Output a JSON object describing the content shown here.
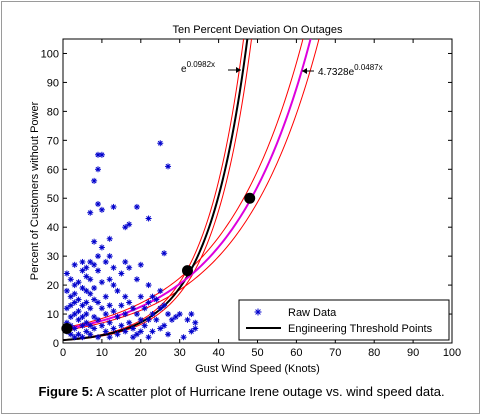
{
  "chart_data": {
    "type": "scatter",
    "title": "Ten Percent Deviation On Outages",
    "xlabel": "Gust Wind Speed (Knots)",
    "ylabel": "Percent of Customers without Power",
    "xlim": [
      0,
      100
    ],
    "ylim": [
      0,
      105
    ],
    "xticks": [
      0,
      10,
      20,
      30,
      40,
      50,
      60,
      70,
      80,
      90,
      100
    ],
    "yticks": [
      0,
      10,
      20,
      30,
      40,
      50,
      60,
      70,
      80,
      90,
      100
    ],
    "legend_position": "bottom-right",
    "colors": {
      "raw": "#0000cc",
      "threshold_curve": "#000000",
      "fit_curve": "#dd00dd",
      "deviation_band": "#ff0000",
      "marker": "#000000"
    },
    "series": [
      {
        "name": "Raw Data",
        "marker": "asterisk",
        "points": [
          [
            1,
            24
          ],
          [
            1,
            18
          ],
          [
            1,
            12
          ],
          [
            1,
            7
          ],
          [
            1,
            4
          ],
          [
            2,
            22
          ],
          [
            2,
            16
          ],
          [
            2,
            13
          ],
          [
            2,
            9
          ],
          [
            2,
            6
          ],
          [
            2,
            3
          ],
          [
            3,
            27
          ],
          [
            3,
            20
          ],
          [
            3,
            17
          ],
          [
            3,
            14
          ],
          [
            3,
            10
          ],
          [
            3,
            5
          ],
          [
            3,
            2
          ],
          [
            4,
            21
          ],
          [
            4,
            15
          ],
          [
            4,
            11
          ],
          [
            4,
            8
          ],
          [
            4,
            3
          ],
          [
            5,
            28
          ],
          [
            5,
            25
          ],
          [
            5,
            19
          ],
          [
            5,
            13
          ],
          [
            5,
            9
          ],
          [
            5,
            6
          ],
          [
            5,
            2
          ],
          [
            6,
            26
          ],
          [
            6,
            23
          ],
          [
            6,
            18
          ],
          [
            6,
            14
          ],
          [
            6,
            10
          ],
          [
            6,
            7
          ],
          [
            6,
            4
          ],
          [
            7,
            45
          ],
          [
            7,
            28
          ],
          [
            7,
            22
          ],
          [
            7,
            17
          ],
          [
            7,
            12
          ],
          [
            7,
            6
          ],
          [
            7,
            3
          ],
          [
            8,
            56
          ],
          [
            8,
            35
          ],
          [
            8,
            27
          ],
          [
            8,
            19
          ],
          [
            8,
            15
          ],
          [
            8,
            9
          ],
          [
            8,
            5
          ],
          [
            9,
            65
          ],
          [
            9,
            60
          ],
          [
            9,
            48
          ],
          [
            9,
            30
          ],
          [
            9,
            25
          ],
          [
            9,
            14
          ],
          [
            9,
            8
          ],
          [
            9,
            2
          ],
          [
            10,
            65
          ],
          [
            10,
            46
          ],
          [
            10,
            33
          ],
          [
            10,
            21
          ],
          [
            10,
            12
          ],
          [
            10,
            6
          ],
          [
            11,
            28
          ],
          [
            11,
            16
          ],
          [
            11,
            10
          ],
          [
            11,
            4
          ],
          [
            12,
            36
          ],
          [
            12,
            30
          ],
          [
            12,
            22
          ],
          [
            12,
            13
          ],
          [
            12,
            7
          ],
          [
            12,
            2
          ],
          [
            13,
            47
          ],
          [
            13,
            26
          ],
          [
            13,
            20
          ],
          [
            13,
            11
          ],
          [
            13,
            5
          ],
          [
            14,
            18
          ],
          [
            14,
            9
          ],
          [
            14,
            3
          ],
          [
            15,
            24
          ],
          [
            15,
            13
          ],
          [
            15,
            6
          ],
          [
            16,
            40
          ],
          [
            16,
            28
          ],
          [
            16,
            16
          ],
          [
            16,
            10
          ],
          [
            16,
            4
          ],
          [
            17,
            41
          ],
          [
            17,
            26
          ],
          [
            17,
            14
          ],
          [
            17,
            7
          ],
          [
            18,
            12
          ],
          [
            18,
            5
          ],
          [
            18,
            2
          ],
          [
            19,
            47
          ],
          [
            19,
            22
          ],
          [
            19,
            10
          ],
          [
            19,
            3
          ],
          [
            20,
            27
          ],
          [
            20,
            16
          ],
          [
            20,
            8
          ],
          [
            20,
            4
          ],
          [
            21,
            12
          ],
          [
            21,
            6
          ],
          [
            22,
            43
          ],
          [
            22,
            20
          ],
          [
            22,
            14
          ],
          [
            22,
            8
          ],
          [
            22,
            2
          ],
          [
            23,
            16
          ],
          [
            23,
            10
          ],
          [
            23,
            4
          ],
          [
            24,
            15
          ],
          [
            24,
            8
          ],
          [
            25,
            69
          ],
          [
            25,
            18
          ],
          [
            25,
            12
          ],
          [
            25,
            5
          ],
          [
            26,
            31
          ],
          [
            26,
            13
          ],
          [
            26,
            6
          ],
          [
            27,
            61
          ],
          [
            27,
            10
          ],
          [
            27,
            3
          ],
          [
            28,
            8
          ],
          [
            29,
            9
          ],
          [
            30,
            10
          ],
          [
            31,
            2
          ],
          [
            32,
            8
          ],
          [
            33,
            4
          ],
          [
            33,
            10
          ],
          [
            34,
            7
          ],
          [
            34,
            5
          ]
        ]
      },
      {
        "name": "Engineering Threshold Points",
        "points": [
          [
            1,
            5
          ],
          [
            32,
            25
          ],
          [
            48,
            50
          ]
        ]
      }
    ],
    "curves": [
      {
        "label": "e",
        "exponent_label": "0.0982x",
        "formula": "exp(0.0982*x)",
        "color": "#000000"
      },
      {
        "label": "4.7328e",
        "exponent_label": "0.0487x",
        "formula": "4.7328*exp(0.0487*x)",
        "color": "#dd00dd"
      },
      {
        "formula": "1.1*exp(0.0982*x)",
        "color": "#ff0000"
      },
      {
        "formula": "0.9*exp(0.0982*x)",
        "color": "#ff0000"
      },
      {
        "formula": "1.1*4.7328*exp(0.0487*x)",
        "color": "#ff0000"
      },
      {
        "formula": "0.9*4.7328*exp(0.0487*x)",
        "color": "#ff0000"
      }
    ]
  },
  "caption": {
    "label": "Figure 5:",
    "text": " A scatter plot of Hurricane Irene outage vs. wind speed data."
  }
}
